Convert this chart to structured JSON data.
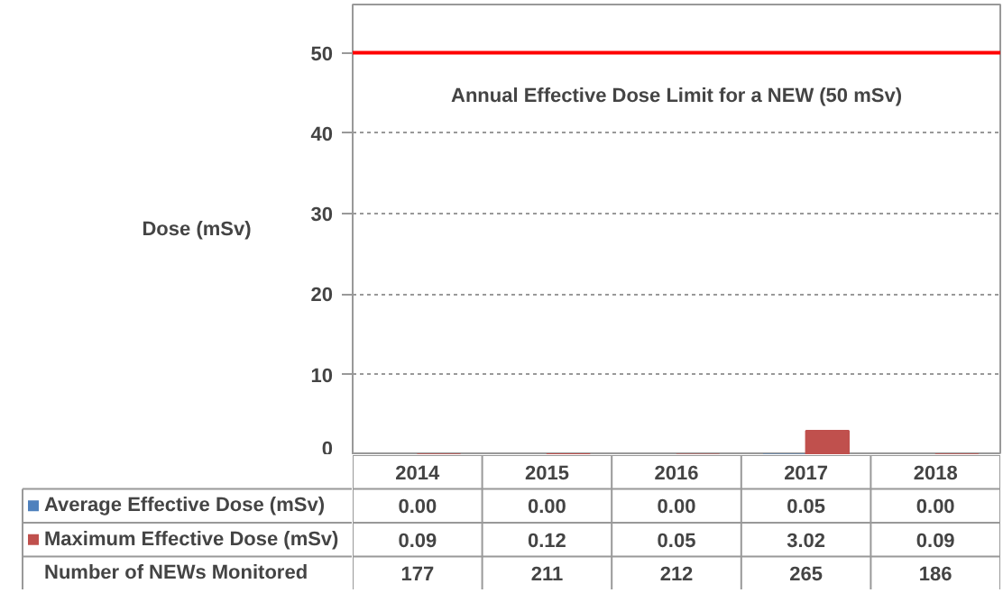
{
  "chart_data": {
    "type": "bar",
    "ylabel": "Dose (mSv)",
    "categories": [
      "2014",
      "2015",
      "2016",
      "2017",
      "2018"
    ],
    "series": [
      {
        "name": "Average Effective Dose (mSv)",
        "color": "#4f81bd",
        "values": [
          0,
          0,
          0,
          0.05,
          0
        ],
        "value_labels": [
          "0.00",
          "0.00",
          "0.00",
          "0.05",
          "0.00"
        ]
      },
      {
        "name": "Maximum Effective Dose (mSv)",
        "color": "#c0504d",
        "values": [
          0.09,
          0.12,
          0.05,
          3.02,
          0.09
        ],
        "value_labels": [
          "0.09",
          "0.12",
          "0.05",
          "3.02",
          "0.09"
        ]
      }
    ],
    "ylim": [
      0,
      56
    ],
    "yticks": [
      0,
      10,
      20,
      30,
      40,
      50
    ],
    "grid": "y",
    "legend": "bottom left",
    "ref_lines": [
      {
        "axis": "y",
        "value": 50,
        "label": "Annual Effective Dose Limit for a NEW (50 mSv)",
        "color": "#ff0000"
      }
    ],
    "annotations": [
      "Number of NEWs Monitored",
      "177",
      "211",
      "212",
      "265",
      "186"
    ]
  }
}
